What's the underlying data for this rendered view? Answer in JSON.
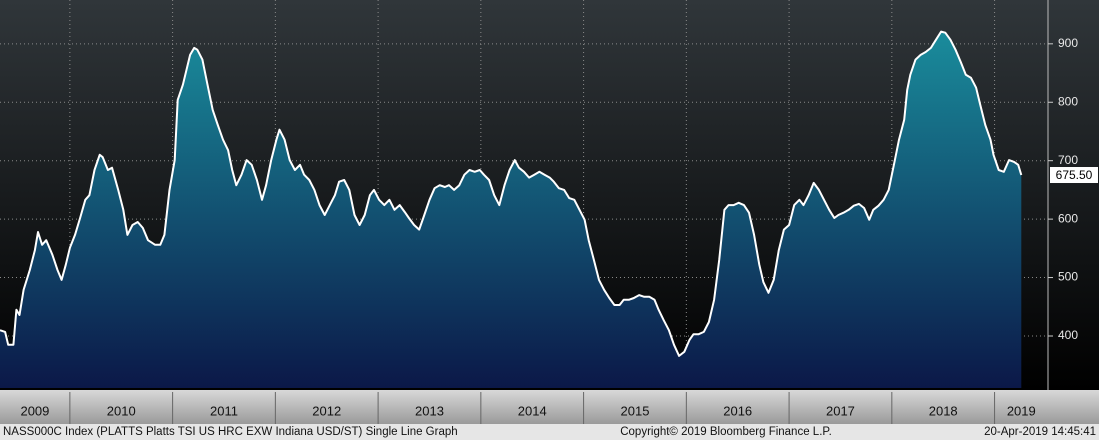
{
  "chart_data": {
    "type": "area",
    "footer_left": "NASS000C Index (PLATTS Platts TSI US HRC EXW Indiana USD/ST) Single Line Graph",
    "footer_center": "Copyright© 2019 Bloomberg Finance L.P.",
    "footer_right": "20-Apr-2019 14:45:41",
    "line_color": "#ffffff",
    "fill_top_color": "#1a8f9e",
    "fill_bottom_color": "#0b1848",
    "grid": true,
    "xlim": [
      2009.32,
      2019.52
    ],
    "xticks": [
      2009,
      2010,
      2011,
      2012,
      2013,
      2014,
      2015,
      2016,
      2017,
      2018,
      2019
    ],
    "ylim": [
      311,
      975
    ],
    "yticks": [
      400,
      500,
      600,
      700,
      800,
      900
    ],
    "last_price": {
      "value": 675.5,
      "label": "675.50"
    },
    "x": [
      2009.32,
      2009.37,
      2009.4,
      2009.45,
      2009.48,
      2009.51,
      2009.55,
      2009.61,
      2009.66,
      2009.69,
      2009.73,
      2009.77,
      2009.83,
      2009.88,
      2009.92,
      2009.96,
      2010.0,
      2010.05,
      2010.1,
      2010.15,
      2010.19,
      2010.24,
      2010.29,
      2010.32,
      2010.37,
      2010.41,
      2010.47,
      2010.52,
      2010.56,
      2010.61,
      2010.66,
      2010.71,
      2010.76,
      2010.83,
      2010.88,
      2010.92,
      2010.97,
      2011.02,
      2011.05,
      2011.1,
      2011.17,
      2011.21,
      2011.24,
      2011.29,
      2011.34,
      2011.39,
      2011.44,
      2011.49,
      2011.54,
      2011.58,
      2011.62,
      2011.67,
      2011.72,
      2011.77,
      2011.82,
      2011.87,
      2011.91,
      2011.96,
      2012.01,
      2012.04,
      2012.09,
      2012.14,
      2012.19,
      2012.24,
      2012.28,
      2012.33,
      2012.38,
      2012.43,
      2012.48,
      2012.53,
      2012.58,
      2012.62,
      2012.67,
      2012.72,
      2012.77,
      2012.82,
      2012.87,
      2012.92,
      2012.96,
      2013.01,
      2013.06,
      2013.11,
      2013.16,
      2013.21,
      2013.26,
      2013.3,
      2013.35,
      2013.4,
      2013.45,
      2013.5,
      2013.55,
      2013.6,
      2013.65,
      2013.69,
      2013.74,
      2013.79,
      2013.84,
      2013.89,
      2013.94,
      2013.99,
      2014.03,
      2014.08,
      2014.13,
      2014.18,
      2014.23,
      2014.28,
      2014.33,
      2014.37,
      2014.42,
      2014.47,
      2014.52,
      2014.57,
      2014.62,
      2014.67,
      2014.71,
      2014.76,
      2014.81,
      2014.86,
      2014.91,
      2014.96,
      2015.01,
      2015.05,
      2015.1,
      2015.15,
      2015.2,
      2015.25,
      2015.3,
      2015.35,
      2015.39,
      2015.44,
      2015.49,
      2015.54,
      2015.59,
      2015.64,
      2015.69,
      2015.73,
      2015.78,
      2015.83,
      2015.88,
      2015.93,
      2015.98,
      2016.03,
      2016.07,
      2016.12,
      2016.17,
      2016.22,
      2016.27,
      2016.32,
      2016.37,
      2016.41,
      2016.46,
      2016.51,
      2016.56,
      2016.61,
      2016.66,
      2016.71,
      2016.75,
      2016.8,
      2016.85,
      2016.9,
      2016.95,
      2017.0,
      2017.05,
      2017.1,
      2017.14,
      2017.19,
      2017.24,
      2017.29,
      2017.34,
      2017.39,
      2017.44,
      2017.48,
      2017.53,
      2017.58,
      2017.63,
      2017.68,
      2017.73,
      2017.78,
      2017.82,
      2017.87,
      2017.92,
      2017.97,
      2018.02,
      2018.07,
      2018.12,
      2018.15,
      2018.18,
      2018.23,
      2018.28,
      2018.33,
      2018.38,
      2018.43,
      2018.48,
      2018.52,
      2018.57,
      2018.62,
      2018.67,
      2018.72,
      2018.77,
      2018.82,
      2018.86,
      2018.91,
      2018.96,
      2018.99,
      2019.04,
      2019.09,
      2019.14,
      2019.19,
      2019.23,
      2019.26
    ],
    "values": [
      410,
      407,
      385,
      385,
      445,
      436,
      479,
      513,
      547,
      578,
      556,
      564,
      539,
      513,
      496,
      522,
      551,
      573,
      602,
      633,
      641,
      684,
      710,
      706,
      684,
      688,
      650,
      616,
      573,
      590,
      595,
      585,
      564,
      556,
      556,
      573,
      650,
      701,
      804,
      830,
      881,
      893,
      890,
      873,
      830,
      787,
      761,
      736,
      718,
      684,
      658,
      676,
      701,
      693,
      667,
      633,
      658,
      701,
      736,
      753,
      736,
      701,
      684,
      693,
      676,
      667,
      650,
      624,
      607,
      624,
      641,
      664,
      667,
      650,
      607,
      590,
      607,
      641,
      650,
      633,
      624,
      633,
      616,
      624,
      612,
      602,
      590,
      582,
      607,
      633,
      653,
      658,
      655,
      658,
      650,
      658,
      676,
      684,
      681,
      684,
      676,
      667,
      641,
      624,
      658,
      684,
      701,
      688,
      681,
      671,
      676,
      681,
      676,
      671,
      664,
      653,
      650,
      636,
      633,
      616,
      599,
      564,
      530,
      496,
      479,
      465,
      453,
      453,
      462,
      462,
      465,
      470,
      467,
      467,
      462,
      445,
      427,
      410,
      385,
      366,
      373,
      393,
      403,
      403,
      407,
      424,
      462,
      530,
      616,
      624,
      624,
      628,
      624,
      611,
      573,
      522,
      492,
      474,
      496,
      547,
      582,
      590,
      624,
      633,
      624,
      641,
      662,
      650,
      633,
      616,
      602,
      607,
      611,
      616,
      623,
      626,
      619,
      599,
      616,
      623,
      633,
      650,
      693,
      736,
      770,
      821,
      847,
      873,
      881,
      886,
      893,
      907,
      921,
      919,
      907,
      890,
      869,
      847,
      842,
      825,
      796,
      761,
      736,
      710,
      684,
      681,
      701,
      698,
      693,
      675.5
    ]
  }
}
